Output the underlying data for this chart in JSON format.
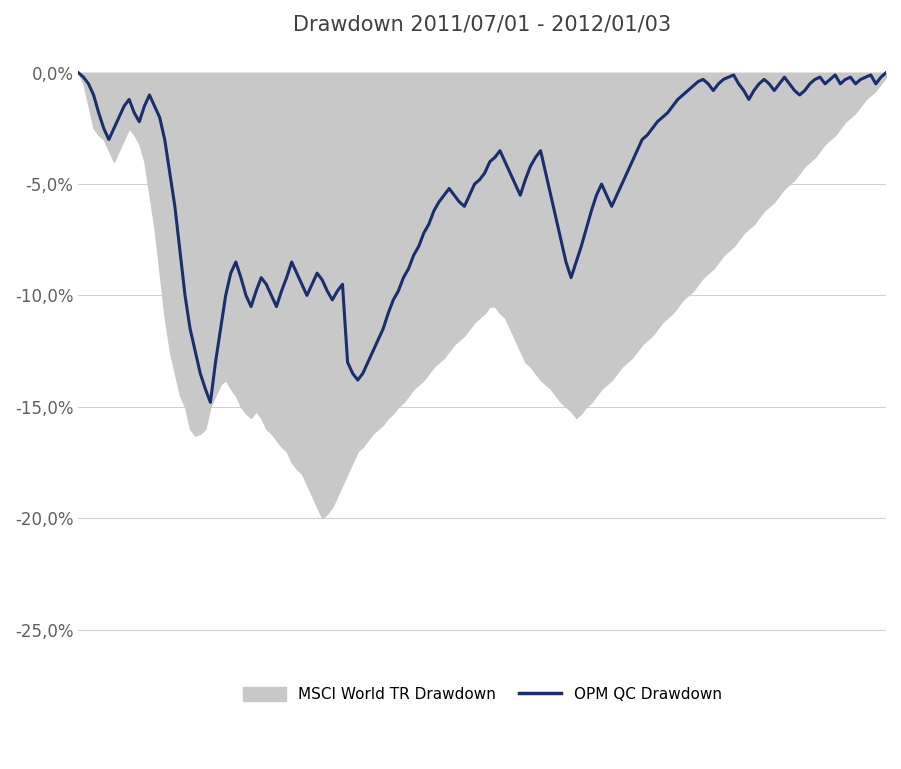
{
  "title": "Drawdown 2011/07/01 - 2012/01/03",
  "title_fontsize": 15,
  "ylim": [
    -27,
    1.0
  ],
  "yticks": [
    0,
    -5,
    -10,
    -15,
    -20,
    -25
  ],
  "ytick_labels": [
    "0,0%",
    "-5,0%",
    "-10,0%",
    "-15,0%",
    "-20,0%",
    "-25,0%"
  ],
  "background_color": "#ffffff",
  "fill_color": "#c8c8c8",
  "line_color": "#1a2e6e",
  "line_width": 2.2,
  "legend_fill_label": "MSCI World TR Drawdown",
  "legend_line_label": "OPM QC Drawdown",
  "msci_drawdown": [
    0.0,
    -0.5,
    -1.5,
    -2.5,
    -2.8,
    -3.0,
    -3.5,
    -4.0,
    -3.5,
    -3.0,
    -2.5,
    -2.8,
    -3.2,
    -4.0,
    -5.5,
    -7.0,
    -9.0,
    -11.0,
    -12.5,
    -13.5,
    -14.5,
    -15.0,
    -16.0,
    -16.3,
    -16.2,
    -16.0,
    -15.0,
    -14.5,
    -14.0,
    -13.8,
    -14.2,
    -14.5,
    -15.0,
    -15.3,
    -15.5,
    -15.2,
    -15.5,
    -16.0,
    -16.2,
    -16.5,
    -16.8,
    -17.0,
    -17.5,
    -17.8,
    -18.0,
    -18.5,
    -19.0,
    -19.5,
    -20.0,
    -19.8,
    -19.5,
    -19.0,
    -18.5,
    -18.0,
    -17.5,
    -17.0,
    -16.8,
    -16.5,
    -16.2,
    -16.0,
    -15.8,
    -15.5,
    -15.3,
    -15.0,
    -14.8,
    -14.5,
    -14.2,
    -14.0,
    -13.8,
    -13.5,
    -13.2,
    -13.0,
    -12.8,
    -12.5,
    -12.2,
    -12.0,
    -11.8,
    -11.5,
    -11.2,
    -11.0,
    -10.8,
    -10.5,
    -10.5,
    -10.8,
    -11.0,
    -11.5,
    -12.0,
    -12.5,
    -13.0,
    -13.2,
    -13.5,
    -13.8,
    -14.0,
    -14.2,
    -14.5,
    -14.8,
    -15.0,
    -15.2,
    -15.5,
    -15.3,
    -15.0,
    -14.8,
    -14.5,
    -14.2,
    -14.0,
    -13.8,
    -13.5,
    -13.2,
    -13.0,
    -12.8,
    -12.5,
    -12.2,
    -12.0,
    -11.8,
    -11.5,
    -11.2,
    -11.0,
    -10.8,
    -10.5,
    -10.2,
    -10.0,
    -9.8,
    -9.5,
    -9.2,
    -9.0,
    -8.8,
    -8.5,
    -8.2,
    -8.0,
    -7.8,
    -7.5,
    -7.2,
    -7.0,
    -6.8,
    -6.5,
    -6.2,
    -6.0,
    -5.8,
    -5.5,
    -5.2,
    -5.0,
    -4.8,
    -4.5,
    -4.2,
    -4.0,
    -3.8,
    -3.5,
    -3.2,
    -3.0,
    -2.8,
    -2.5,
    -2.2,
    -2.0,
    -1.8,
    -1.5,
    -1.2,
    -1.0,
    -0.8,
    -0.5,
    -0.2
  ],
  "opm_drawdown": [
    0.0,
    -0.2,
    -0.5,
    -1.0,
    -1.8,
    -2.5,
    -3.0,
    -2.5,
    -2.0,
    -1.5,
    -1.2,
    -1.8,
    -2.2,
    -1.5,
    -1.0,
    -1.5,
    -2.0,
    -3.0,
    -4.5,
    -6.0,
    -8.0,
    -10.0,
    -11.5,
    -12.5,
    -13.5,
    -14.2,
    -14.8,
    -13.0,
    -11.5,
    -10.0,
    -9.0,
    -8.5,
    -9.2,
    -10.0,
    -10.5,
    -9.8,
    -9.2,
    -9.5,
    -10.0,
    -10.5,
    -9.8,
    -9.2,
    -8.5,
    -9.0,
    -9.5,
    -10.0,
    -9.5,
    -9.0,
    -9.3,
    -9.8,
    -10.2,
    -9.8,
    -9.5,
    -13.0,
    -13.5,
    -13.8,
    -13.5,
    -13.0,
    -12.5,
    -12.0,
    -11.5,
    -10.8,
    -10.2,
    -9.8,
    -9.2,
    -8.8,
    -8.2,
    -7.8,
    -7.2,
    -6.8,
    -6.2,
    -5.8,
    -5.5,
    -5.2,
    -5.5,
    -5.8,
    -6.0,
    -5.5,
    -5.0,
    -4.8,
    -4.5,
    -4.0,
    -3.8,
    -3.5,
    -4.0,
    -4.5,
    -5.0,
    -5.5,
    -4.8,
    -4.2,
    -3.8,
    -3.5,
    -4.5,
    -5.5,
    -6.5,
    -7.5,
    -8.5,
    -9.2,
    -8.5,
    -7.8,
    -7.0,
    -6.2,
    -5.5,
    -5.0,
    -5.5,
    -6.0,
    -5.5,
    -5.0,
    -4.5,
    -4.0,
    -3.5,
    -3.0,
    -2.8,
    -2.5,
    -2.2,
    -2.0,
    -1.8,
    -1.5,
    -1.2,
    -1.0,
    -0.8,
    -0.6,
    -0.4,
    -0.3,
    -0.5,
    -0.8,
    -0.5,
    -0.3,
    -0.2,
    -0.1,
    -0.5,
    -0.8,
    -1.2,
    -0.8,
    -0.5,
    -0.3,
    -0.5,
    -0.8,
    -0.5,
    -0.2,
    -0.5,
    -0.8,
    -1.0,
    -0.8,
    -0.5,
    -0.3,
    -0.2,
    -0.5,
    -0.3,
    -0.1,
    -0.5,
    -0.3,
    -0.2,
    -0.5,
    -0.3,
    -0.2,
    -0.1,
    -0.5,
    -0.2,
    0.0
  ]
}
